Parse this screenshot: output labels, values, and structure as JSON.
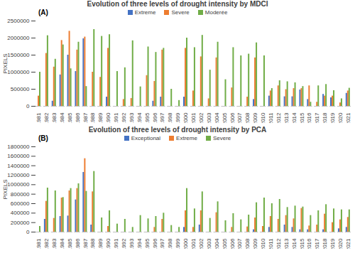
{
  "chart_data": [
    {
      "type": "bar",
      "title": "Evolution of three levels of drought intensity by MDCI",
      "annotations": [
        "(A)"
      ],
      "y_label": "PIXELS",
      "categories": [
        "1981",
        "1982",
        "1983",
        "1984",
        "1985",
        "1986",
        "1987",
        "1988",
        "1989",
        "1990",
        "1991",
        "1992",
        "1993",
        "1994",
        "1995",
        "1996",
        "1997",
        "1998",
        "1999",
        "2000",
        "2001",
        "2002",
        "2003",
        "2004",
        "2005",
        "2006",
        "2007",
        "2008",
        "2009",
        "2010",
        "2011",
        "2012",
        "2013",
        "2014",
        "2015",
        "2016",
        "2017",
        "2018",
        "2019",
        "2020",
        "2021"
      ],
      "series": [
        {
          "name": "Extreme",
          "color": "#4472c4",
          "values": [
            0,
            0,
            150000,
            920000,
            1500000,
            1020000,
            1980000,
            0,
            0,
            270000,
            0,
            0,
            0,
            0,
            0,
            150000,
            270000,
            0,
            0,
            270000,
            0,
            0,
            0,
            0,
            0,
            0,
            0,
            0,
            200000,
            0,
            300000,
            0,
            280000,
            280000,
            480000,
            200000,
            0,
            350000,
            250000,
            0,
            380000
          ]
        },
        {
          "name": "Severe",
          "color": "#ed7d31",
          "values": [
            300000,
            1550000,
            1150000,
            1930000,
            2200000,
            1650000,
            2030000,
            1000000,
            850000,
            1700000,
            0,
            200000,
            230000,
            0,
            900000,
            730000,
            1650000,
            0,
            0,
            1700000,
            450000,
            1450000,
            220000,
            1420000,
            0,
            540000,
            0,
            270000,
            1420000,
            0,
            450000,
            600000,
            490000,
            520000,
            520000,
            600000,
            120000,
            300000,
            300000,
            100000,
            450000
          ]
        },
        {
          "name": "Moderée",
          "color": "#70ad47",
          "values": [
            1000000,
            2070000,
            1380000,
            1800000,
            1100000,
            1880000,
            580000,
            2250000,
            2050000,
            2100000,
            1020000,
            1130000,
            1920000,
            570000,
            1740000,
            1580000,
            1700000,
            500000,
            170000,
            2000000,
            1720000,
            2080000,
            1060000,
            1880000,
            780000,
            1720000,
            1480000,
            1530000,
            1860000,
            1480000,
            520000,
            750000,
            720000,
            690000,
            580000,
            120000,
            600000,
            640000,
            460000,
            220000,
            530000
          ]
        }
      ],
      "ylim": [
        0,
        2500000
      ],
      "yticks": [
        0,
        500000,
        1000000,
        1500000,
        2000000,
        2500000
      ],
      "grid": false,
      "legend": "top"
    },
    {
      "type": "bar",
      "title": "Evolution of three levels of drought intensity by PCA",
      "annotations": [
        "(B)"
      ],
      "y_label": "PIXELS",
      "categories": [
        "1981",
        "1982",
        "1983",
        "1984",
        "1985",
        "1986",
        "1987",
        "1988",
        "1989",
        "1990",
        "1991",
        "1992",
        "1993",
        "1994",
        "1995",
        "1996",
        "1997",
        "1998",
        "1999",
        "2000",
        "2001",
        "2002",
        "2003",
        "2004",
        "2005",
        "2006",
        "2007",
        "2008",
        "2009",
        "2010",
        "2011",
        "2012",
        "2013",
        "2014",
        "2015",
        "2016",
        "2017",
        "2018",
        "2019",
        "2020",
        "2021"
      ],
      "series": [
        {
          "name": "Exceptional",
          "color": "#4472c4",
          "values": [
            0,
            270000,
            0,
            330000,
            340000,
            680000,
            1260000,
            150000,
            0,
            0,
            0,
            0,
            0,
            0,
            0,
            0,
            0,
            0,
            0,
            100000,
            0,
            150000,
            0,
            0,
            0,
            0,
            0,
            0,
            50000,
            0,
            100000,
            0,
            150000,
            100000,
            50000,
            50000,
            0,
            50000,
            0,
            70000,
            100000
          ]
        },
        {
          "name": "Extreme",
          "color": "#ed7d31",
          "values": [
            0,
            650000,
            290000,
            720000,
            870000,
            920000,
            1550000,
            850000,
            0,
            120000,
            0,
            0,
            0,
            0,
            0,
            100000,
            270000,
            0,
            0,
            450000,
            100000,
            450000,
            0,
            410000,
            0,
            100000,
            0,
            110000,
            300000,
            120000,
            330000,
            270000,
            350000,
            280000,
            500000,
            130000,
            150000,
            380000,
            200000,
            260000,
            310000
          ]
        },
        {
          "name": "Severe",
          "color": "#70ad47",
          "values": [
            120000,
            930000,
            870000,
            730000,
            920000,
            1020000,
            860000,
            1280000,
            300000,
            450000,
            170000,
            270000,
            100000,
            350000,
            280000,
            330000,
            400000,
            140000,
            100000,
            920000,
            490000,
            850000,
            290000,
            640000,
            240000,
            390000,
            260000,
            360000,
            620000,
            720000,
            600000,
            690000,
            520000,
            550000,
            530000,
            350000,
            450000,
            580000,
            490000,
            470000,
            470000
          ]
        }
      ],
      "ylim": [
        0,
        1800000
      ],
      "yticks": [
        0,
        200000,
        400000,
        600000,
        800000,
        1000000,
        1200000,
        1400000,
        1600000,
        1800000
      ],
      "grid": false,
      "legend": "top"
    }
  ]
}
